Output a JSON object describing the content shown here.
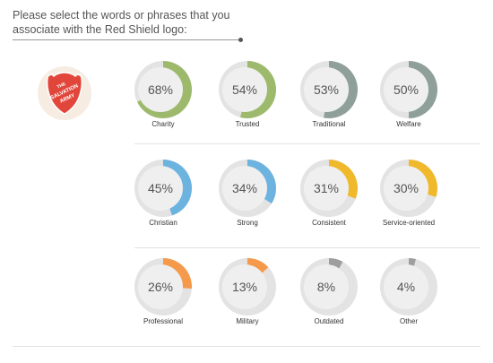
{
  "question": {
    "line1": "Please select the words or phrases that you",
    "line2": "associate with the Red Shield logo:"
  },
  "logo": {
    "alt_lines": [
      "THE",
      "SALVATION",
      "ARMY"
    ],
    "shield_color": "#e2463b",
    "badge_color": "#f6ece2"
  },
  "colors": {
    "track": "#e3e3e3",
    "inner": "#efefef",
    "green": "#9dba6c",
    "gray_green": "#8fa09a",
    "blue": "#6db3df",
    "yellow": "#f0b92c",
    "orange": "#f59a4b",
    "gray": "#9e9e9e"
  },
  "chart_data": {
    "type": "pie",
    "title": "",
    "items": [
      {
        "label": "Charity",
        "value": 68,
        "display": "68%",
        "color": "#9dba6c"
      },
      {
        "label": "Trusted",
        "value": 54,
        "display": "54%",
        "color": "#9dba6c"
      },
      {
        "label": "Traditional",
        "value": 53,
        "display": "53%",
        "color": "#8fa09a"
      },
      {
        "label": "Welfare",
        "value": 50,
        "display": "50%",
        "color": "#8fa09a"
      },
      {
        "label": "Christian",
        "value": 45,
        "display": "45%",
        "color": "#6db3df"
      },
      {
        "label": "Strong",
        "value": 34,
        "display": "34%",
        "color": "#6db3df"
      },
      {
        "label": "Consistent",
        "value": 31,
        "display": "31%",
        "color": "#f0b92c"
      },
      {
        "label": "Service-oriented",
        "value": 30,
        "display": "30%",
        "color": "#f0b92c"
      },
      {
        "label": "Professional",
        "value": 26,
        "display": "26%",
        "color": "#f59a4b"
      },
      {
        "label": "Military",
        "value": 13,
        "display": "13%",
        "color": "#f59a4b"
      },
      {
        "label": "Outdated",
        "value": 8,
        "display": "8%",
        "color": "#9e9e9e"
      },
      {
        "label": "Other",
        "value": 4,
        "display": "4%",
        "color": "#9e9e9e"
      }
    ]
  }
}
